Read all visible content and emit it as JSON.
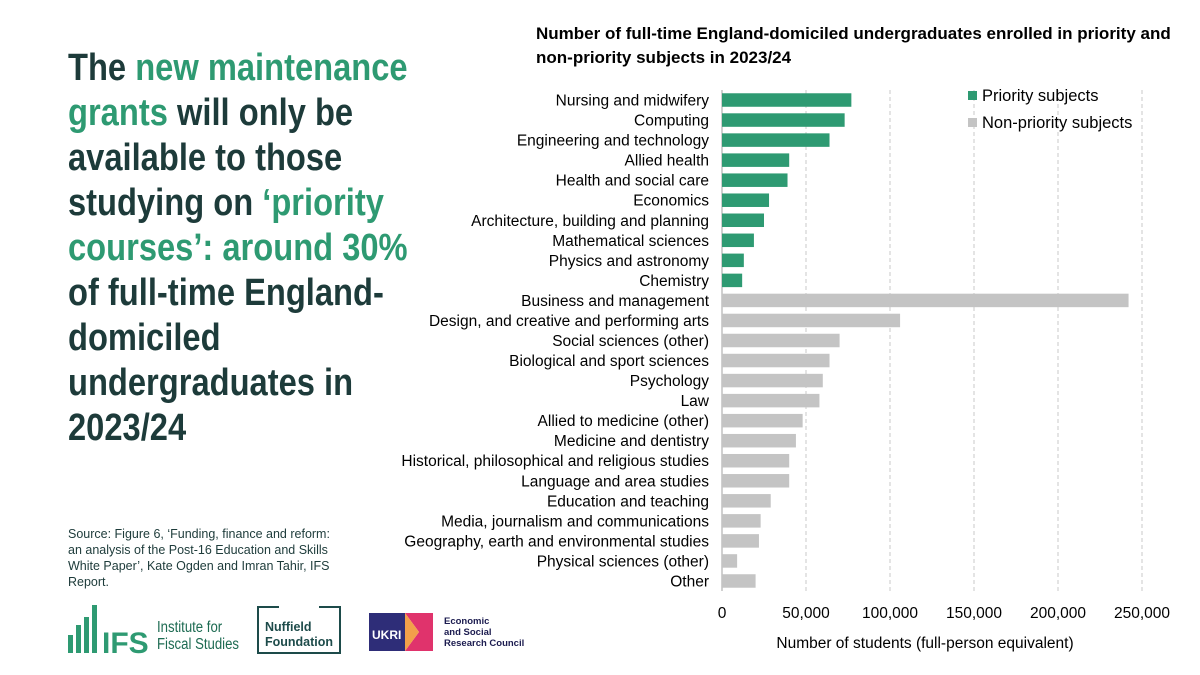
{
  "headline": {
    "part1": "The ",
    "part2": "new maintenance grants",
    "part3": " will only be available to those studying on ",
    "part4": "‘priority courses’: around 30%",
    "part5": " of full-time England-domiciled undergraduates in 2023/24"
  },
  "source": "Source: Figure 6, ‘Funding, finance and reform: an analysis of the Post-16 Education and Skills White Paper’, Kate Ogden and Imran Tahir, IFS Report.",
  "logos": {
    "ifs_mark": "IFS",
    "ifs_line1": "Institute for",
    "ifs_line2": "Fiscal Studies",
    "nuffield_line1": "Nuffield",
    "nuffield_line2": "Foundation",
    "ukri": "UKRI",
    "esrc_line1": "Economic",
    "esrc_line2": "and Social",
    "esrc_line3": "Research Council"
  },
  "colors": {
    "priority": "#2e9a72",
    "nonpriority": "#c4c4c4",
    "headline": "#1d3b3a",
    "accent": "#2e9a72"
  },
  "chart_data": {
    "type": "bar",
    "orientation": "horizontal",
    "title": "Number of full-time England-domiciled undergraduates enrolled in priority and non-priority subjects in 2023/24",
    "xlabel": "Number of students (full-person equivalent)",
    "xlim": [
      0,
      250000
    ],
    "xticks": [
      0,
      50000,
      100000,
      150000,
      200000,
      250000
    ],
    "xtick_labels": [
      "0",
      "50,000",
      "100,000",
      "150,000",
      "200,000",
      "250,000"
    ],
    "grid": "vertical dashed",
    "legend_position": "top-right",
    "legend": [
      "Priority subjects",
      "Non-priority subjects"
    ],
    "categories": [
      "Nursing and midwifery",
      "Computing",
      "Engineering and technology",
      "Allied health",
      "Health and social care",
      "Economics",
      "Architecture, building and planning",
      "Mathematical sciences",
      "Physics and astronomy",
      "Chemistry",
      "Business and management",
      "Design, and creative and performing arts",
      "Social sciences (other)",
      "Biological and sport sciences",
      "Psychology",
      "Law",
      "Allied to medicine (other)",
      "Medicine and dentistry",
      "Historical, philosophical and religious studies",
      "Language and area studies",
      "Education and teaching",
      "Media, journalism and communications",
      "Geography, earth and environmental studies",
      "Physical sciences (other)",
      "Other"
    ],
    "values": [
      77000,
      73000,
      64000,
      40000,
      39000,
      28000,
      25000,
      19000,
      13000,
      12000,
      242000,
      106000,
      70000,
      64000,
      60000,
      58000,
      48000,
      44000,
      40000,
      40000,
      29000,
      23000,
      22000,
      9000,
      20000
    ],
    "groups": [
      "priority",
      "priority",
      "priority",
      "priority",
      "priority",
      "priority",
      "priority",
      "priority",
      "priority",
      "priority",
      "nonpriority",
      "nonpriority",
      "nonpriority",
      "nonpriority",
      "nonpriority",
      "nonpriority",
      "nonpriority",
      "nonpriority",
      "nonpriority",
      "nonpriority",
      "nonpriority",
      "nonpriority",
      "nonpriority",
      "nonpriority",
      "nonpriority"
    ]
  }
}
